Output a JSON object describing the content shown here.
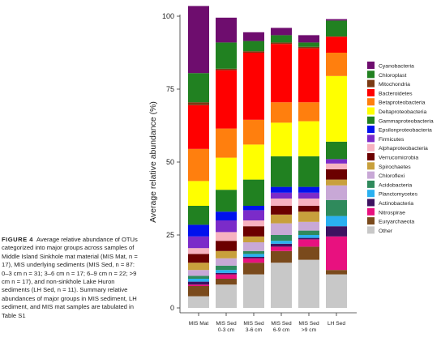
{
  "caption": {
    "label": "FIGURE 4",
    "text": "Average relative abundance of OTUs categorized into major groups across samples of Middle Island Sinkhole mat material (MIS Mat, n = 17), MIS underlying sediments (MIS Sed, n = 87: 0–3 cm n = 31; 3–6 cm n = 17; 6–9 cm n = 22; >9 cm n = 17), and non-sinkhole Lake Huron sediments (LH Sed, n = 11). Summary relative abundances of major groups in MIS sediment, LH sediment, and MIS mat samples are tabulated in Table S1"
  },
  "chart_data": {
    "type": "bar",
    "stacked": true,
    "ylabel": "Average relative abundance (%)",
    "xlabel": "",
    "ylim": [
      0,
      100
    ],
    "yticks": [
      0,
      25,
      50,
      75,
      100
    ],
    "categories": [
      [
        "MIS Mat"
      ],
      [
        "MIS Sed",
        "0-3 cm"
      ],
      [
        "MIS Sed",
        "3-6 cm"
      ],
      [
        "MIS Sed",
        "6-9 cm"
      ],
      [
        "MIS Sed",
        ">9 cm"
      ],
      [
        "LH Sed"
      ]
    ],
    "legend_position": "right",
    "series": [
      {
        "name": "Other",
        "color": "#c8c8c8",
        "values": [
          4,
          8,
          11.5,
          15.5,
          16.5,
          11.5
        ]
      },
      {
        "name": "Euryarchaeota",
        "color": "#7a4a1c",
        "values": [
          3.5,
          2,
          4,
          4,
          4.5,
          1.5
        ]
      },
      {
        "name": "Nitrospirae",
        "color": "#e8117f",
        "values": [
          0.5,
          1.5,
          1.5,
          1.5,
          2.5,
          11.5
        ]
      },
      {
        "name": "Actinobacteria",
        "color": "#3d1260",
        "values": [
          1,
          0.5,
          0.5,
          1,
          0.5,
          3.5
        ]
      },
      {
        "name": "Planctomycetes",
        "color": "#2ab0f0",
        "values": [
          1,
          1,
          1,
          1,
          1,
          3.5
        ]
      },
      {
        "name": "Acidobacteria",
        "color": "#2f8a5c",
        "values": [
          1,
          1.5,
          1,
          2,
          1.5,
          5.5
        ]
      },
      {
        "name": "Chloroflexi",
        "color": "#c8a8d6",
        "values": [
          2,
          2.5,
          3,
          4,
          3,
          5
        ]
      },
      {
        "name": "Spirochaetes",
        "color": "#c8a03c",
        "values": [
          2.5,
          2.5,
          2,
          3,
          3.5,
          2
        ]
      },
      {
        "name": "Verrucomicrobia",
        "color": "#6b0000",
        "values": [
          3,
          3.5,
          3.5,
          3,
          2,
          3.5
        ]
      },
      {
        "name": "Alphaproteobacteria",
        "color": "#f7b2c0",
        "values": [
          2,
          3,
          2,
          2.5,
          2.5,
          2
        ]
      },
      {
        "name": "Firmicutes",
        "color": "#7b2bc9",
        "values": [
          4,
          4,
          3.5,
          2,
          2,
          1.5
        ]
      },
      {
        "name": "Epsilonproteobacteria",
        "color": "#0011ee",
        "values": [
          4,
          3,
          1.5,
          2,
          2,
          0
        ]
      },
      {
        "name": "Gammaproteobacteria",
        "color": "#218121",
        "values": [
          6.5,
          7.5,
          9,
          10.5,
          10.5,
          6
        ]
      },
      {
        "name": "Deltaproteobacteria",
        "color": "#ffff00",
        "values": [
          8.5,
          11,
          12,
          11.5,
          12,
          22.5
        ]
      },
      {
        "name": "Betaproteobacteria",
        "color": "#ff7f0e",
        "values": [
          11,
          10,
          8.5,
          7,
          6.5,
          8
        ]
      },
      {
        "name": "Bacteroidetes",
        "color": "#ff0000",
        "values": [
          15,
          20,
          23,
          20,
          18.5,
          5.5
        ]
      },
      {
        "name": "Mitochondria",
        "color": "#7a3a14",
        "values": [
          1,
          0.5,
          0.5,
          0.5,
          0.5,
          0
        ]
      },
      {
        "name": "Chloroplast",
        "color": "#218121",
        "values": [
          10,
          9,
          3.5,
          2.5,
          1.5,
          5.5
        ]
      },
      {
        "name": "Cyanobacteria",
        "color": "#6e0d6e",
        "values": [
          23,
          8.5,
          3,
          2.5,
          2.5,
          0.5
        ]
      }
    ],
    "legend_order": [
      "Cyanobacteria",
      "Chloroplast",
      "Mitochondria",
      "Bacteroidetes",
      "Betaproteobacteria",
      "Deltaproteobacteria",
      "Gammaproteobacteria",
      "Epsilonproteobacteria",
      "Firmicutes",
      "Alphaproteobacteria",
      "Verrucomicrobia",
      "Spirochaetes",
      "Chloroflexi",
      "Acidobacteria",
      "Planctomycetes",
      "Actinobacteria",
      "Nitrospirae",
      "Euryarchaeota",
      "Other"
    ]
  }
}
